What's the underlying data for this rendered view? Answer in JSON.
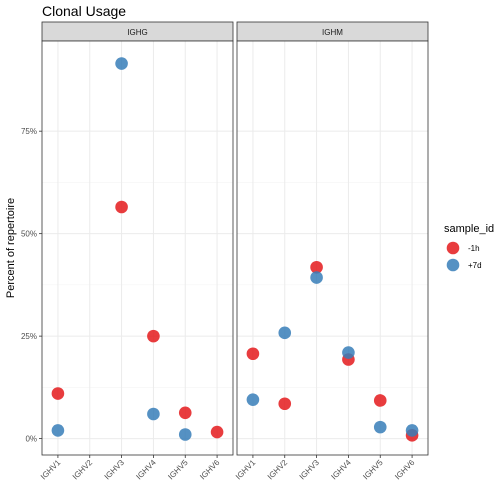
{
  "chart_data": {
    "type": "scatter",
    "title": "Clonal Usage",
    "xlabel": "",
    "ylabel": "Percent of repertoire",
    "categories": [
      "IGHV1",
      "IGHV2",
      "IGHV3",
      "IGHV4",
      "IGHV5",
      "IGHV6"
    ],
    "yticks": [
      "0%",
      "25%",
      "50%",
      "75%"
    ],
    "ylim": [
      -0.04,
      0.97
    ],
    "grid": true,
    "legend": {
      "title": "sample_id",
      "position": "right"
    },
    "panels": [
      {
        "label": "IGHG",
        "series": [
          {
            "name": "-1h",
            "color": "#E41A1C",
            "points": [
              {
                "x": "IGHV1",
                "y": 0.11
              },
              {
                "x": "IGHV3",
                "y": 0.565
              },
              {
                "x": "IGHV4",
                "y": 0.25
              },
              {
                "x": "IGHV5",
                "y": 0.063
              },
              {
                "x": "IGHV6",
                "y": 0.016
              }
            ]
          },
          {
            "name": "+7d",
            "color": "#377EB8",
            "points": [
              {
                "x": "IGHV1",
                "y": 0.02
              },
              {
                "x": "IGHV3",
                "y": 0.915
              },
              {
                "x": "IGHV4",
                "y": 0.06
              },
              {
                "x": "IGHV5",
                "y": 0.01
              }
            ]
          }
        ]
      },
      {
        "label": "IGHM",
        "series": [
          {
            "name": "-1h",
            "color": "#E41A1C",
            "points": [
              {
                "x": "IGHV1",
                "y": 0.207
              },
              {
                "x": "IGHV2",
                "y": 0.085
              },
              {
                "x": "IGHV3",
                "y": 0.418
              },
              {
                "x": "IGHV4",
                "y": 0.193
              },
              {
                "x": "IGHV5",
                "y": 0.093
              },
              {
                "x": "IGHV6",
                "y": 0.008
              }
            ]
          },
          {
            "name": "+7d",
            "color": "#377EB8",
            "points": [
              {
                "x": "IGHV1",
                "y": 0.095
              },
              {
                "x": "IGHV2",
                "y": 0.258
              },
              {
                "x": "IGHV3",
                "y": 0.393
              },
              {
                "x": "IGHV4",
                "y": 0.21
              },
              {
                "x": "IGHV5",
                "y": 0.028
              },
              {
                "x": "IGHV6",
                "y": 0.02
              }
            ]
          }
        ]
      }
    ]
  }
}
